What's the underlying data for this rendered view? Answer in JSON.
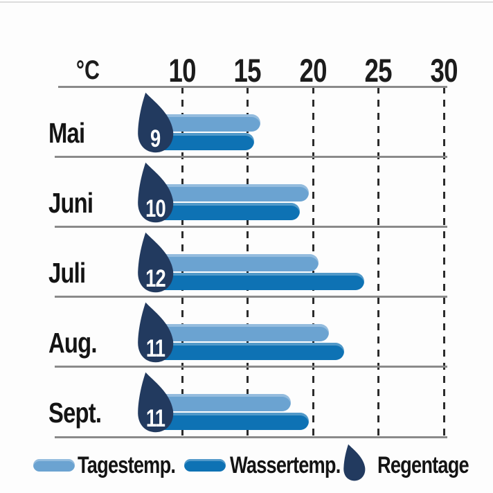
{
  "chart_data": {
    "type": "bar",
    "orientation": "horizontal",
    "title": "",
    "unit_label": "°C",
    "x_axis": {
      "ticks": [
        10,
        15,
        20,
        25,
        30
      ],
      "min": 7.7,
      "max": 30.5
    },
    "grid": "vertical-dashed",
    "categories": [
      "Mai",
      "Juni",
      "Juli",
      "Aug.",
      "Sept."
    ],
    "series": [
      {
        "name": "Tagestemp.",
        "role": "day-temperature",
        "color": "#6BA3D1",
        "values": [
          16.0,
          19.7,
          20.4,
          21.2,
          18.3
        ]
      },
      {
        "name": "Wassertemp.",
        "role": "water-temperature",
        "color": "#0E72B4",
        "values": [
          15.5,
          19.0,
          23.9,
          22.4,
          19.7
        ]
      },
      {
        "name": "Regentage",
        "role": "rain-days",
        "color": "#223A5F",
        "values": [
          9,
          10,
          12,
          11,
          11
        ]
      }
    ],
    "legend": {
      "position": "bottom",
      "items": [
        "Tagestemp.",
        "Wassertemp.",
        "Regentage"
      ]
    }
  },
  "colors": {
    "day_bar": "#6BA3D1",
    "water_bar": "#0E72B4",
    "rain_drop": "#223A5F",
    "text": "#141414",
    "solid_line": "#8a8a8a",
    "dashed_line": "#2b2b2b",
    "background": "#fdfdfd"
  }
}
